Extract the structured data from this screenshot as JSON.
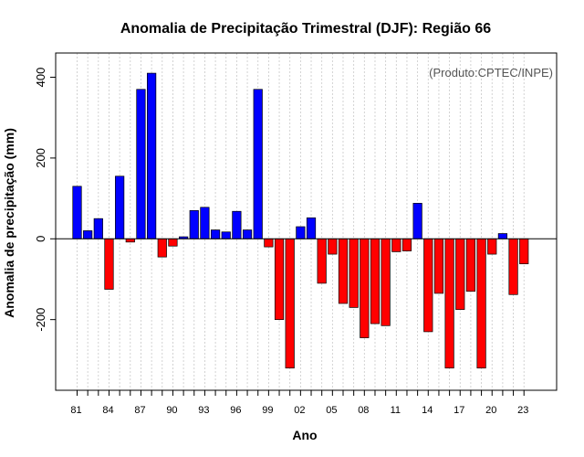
{
  "chart_data": {
    "type": "bar",
    "title": "Anomalia de Precipitação Trimestral (DJF): Região 66",
    "xlabel": "Ano",
    "ylabel": "Anomalia de precipitação (mm)",
    "credit": "(Produto:CPTEC/INPE)",
    "ylim": [
      -375,
      460
    ],
    "yticks": [
      -200,
      0,
      200,
      400
    ],
    "xtick_labels": [
      "81",
      "84",
      "87",
      "90",
      "93",
      "96",
      "99",
      "02",
      "05",
      "08",
      "11",
      "14",
      "17",
      "20",
      "23"
    ],
    "years": [
      1981,
      1982,
      1983,
      1984,
      1985,
      1986,
      1987,
      1988,
      1989,
      1990,
      1991,
      1992,
      1993,
      1994,
      1995,
      1996,
      1997,
      1998,
      1999,
      2000,
      2001,
      2002,
      2003,
      2004,
      2005,
      2006,
      2007,
      2008,
      2009,
      2010,
      2011,
      2012,
      2013,
      2014,
      2015,
      2016,
      2017,
      2018,
      2019,
      2020,
      2021,
      2022,
      2023
    ],
    "values": [
      130,
      20,
      50,
      -125,
      155,
      -8,
      370,
      410,
      -45,
      -18,
      5,
      70,
      78,
      22,
      17,
      68,
      22,
      370,
      -20,
      -200,
      -320,
      30,
      52,
      -110,
      -38,
      -160,
      -170,
      -245,
      -210,
      -215,
      -32,
      -30,
      88,
      -230,
      -135,
      -320,
      -175,
      -130,
      -320,
      -38,
      13,
      -138,
      -62
    ],
    "colors": {
      "positive": "#0000ff",
      "negative": "#ff0000"
    },
    "grid": true
  }
}
